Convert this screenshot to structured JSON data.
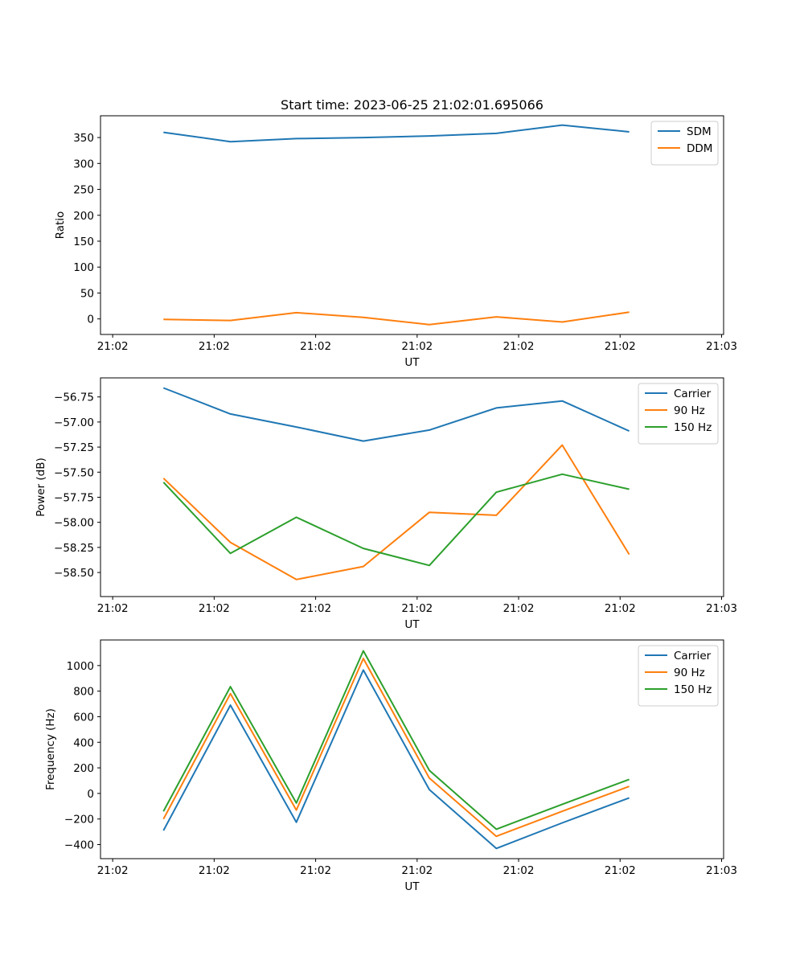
{
  "figure": {
    "title": "Start time: 2023-06-25 21:02:01.695066"
  },
  "chart_data": [
    {
      "type": "line",
      "title": "Start time: 2023-06-25 21:02:01.695066",
      "xlabel": "UT",
      "ylabel": "Ratio",
      "x_tick_labels": [
        "21:02",
        "21:02",
        "21:02",
        "21:02",
        "21:02",
        "21:02",
        "21:03"
      ],
      "x_ticks": [
        0,
        1,
        2,
        3,
        4,
        5,
        6
      ],
      "xlim": [
        -0.12,
        6.02
      ],
      "ylim": [
        -30,
        392
      ],
      "y_ticks": [
        0,
        50,
        100,
        150,
        200,
        250,
        300,
        350
      ],
      "y_tick_labels": [
        "0",
        "50",
        "100",
        "150",
        "200",
        "250",
        "300",
        "350"
      ],
      "x": [
        0.5,
        1.16,
        1.81,
        2.47,
        3.12,
        3.78,
        4.43,
        5.09
      ],
      "legend_position": "top-right",
      "series": [
        {
          "name": "SDM",
          "color": "#1f77b4",
          "values": [
            360,
            342,
            348,
            350,
            353,
            358,
            374,
            361
          ]
        },
        {
          "name": "DDM",
          "color": "#ff7f0e",
          "values": [
            -1,
            -3,
            12,
            3,
            -11,
            4,
            -6,
            13
          ]
        }
      ]
    },
    {
      "type": "line",
      "xlabel": "UT",
      "ylabel": "Power (dB)",
      "x_tick_labels": [
        "21:02",
        "21:02",
        "21:02",
        "21:02",
        "21:02",
        "21:02",
        "21:03"
      ],
      "x_ticks": [
        0,
        1,
        2,
        3,
        4,
        5,
        6
      ],
      "xlim": [
        -0.12,
        6.02
      ],
      "ylim": [
        -58.74,
        -56.56
      ],
      "y_ticks": [
        -58.5,
        -58.25,
        -58.0,
        -57.75,
        -57.5,
        -57.25,
        -57.0,
        -56.75
      ],
      "y_tick_labels": [
        "−58.50",
        "−58.25",
        "−58.00",
        "−57.75",
        "−57.50",
        "−57.25",
        "−57.00",
        "−56.75"
      ],
      "x": [
        0.5,
        1.16,
        1.81,
        2.47,
        3.12,
        3.78,
        4.43,
        5.09
      ],
      "legend_position": "top-right",
      "series": [
        {
          "name": "Carrier",
          "color": "#1f77b4",
          "values": [
            -56.66,
            -56.92,
            -57.05,
            -57.19,
            -57.08,
            -56.86,
            -56.79,
            -57.09
          ]
        },
        {
          "name": "90 Hz",
          "color": "#ff7f0e",
          "values": [
            -57.56,
            -58.2,
            -58.57,
            -58.44,
            -57.9,
            -57.93,
            -57.23,
            -58.32
          ]
        },
        {
          "name": "150 Hz",
          "color": "#2ca02c",
          "values": [
            -57.6,
            -58.31,
            -57.95,
            -58.26,
            -58.43,
            -57.7,
            -57.52,
            -57.67
          ]
        }
      ]
    },
    {
      "type": "line",
      "xlabel": "UT",
      "ylabel": "Frequency (Hz)",
      "x_tick_labels": [
        "21:02",
        "21:02",
        "21:02",
        "21:02",
        "21:02",
        "21:02",
        "21:03"
      ],
      "x_ticks": [
        0,
        1,
        2,
        3,
        4,
        5,
        6
      ],
      "xlim": [
        -0.12,
        6.02
      ],
      "ylim": [
        -510,
        1200
      ],
      "y_ticks": [
        -400,
        -200,
        0,
        200,
        400,
        600,
        800,
        1000
      ],
      "y_tick_labels": [
        "−400",
        "−200",
        "0",
        "200",
        "400",
        "600",
        "800",
        "1000"
      ],
      "x": [
        0.5,
        1.16,
        1.81,
        2.47,
        3.12,
        3.78,
        4.43,
        5.09
      ],
      "legend_position": "top-right",
      "series": [
        {
          "name": "Carrier",
          "color": "#1f77b4",
          "values": [
            -290,
            690,
            -225,
            965,
            30,
            -430,
            -230,
            -35
          ]
        },
        {
          "name": "90 Hz",
          "color": "#ff7f0e",
          "values": [
            -200,
            780,
            -130,
            1055,
            120,
            -335,
            -140,
            55
          ]
        },
        {
          "name": "150 Hz",
          "color": "#2ca02c",
          "values": [
            -140,
            835,
            -75,
            1115,
            180,
            -280,
            -85,
            110
          ]
        }
      ]
    }
  ]
}
